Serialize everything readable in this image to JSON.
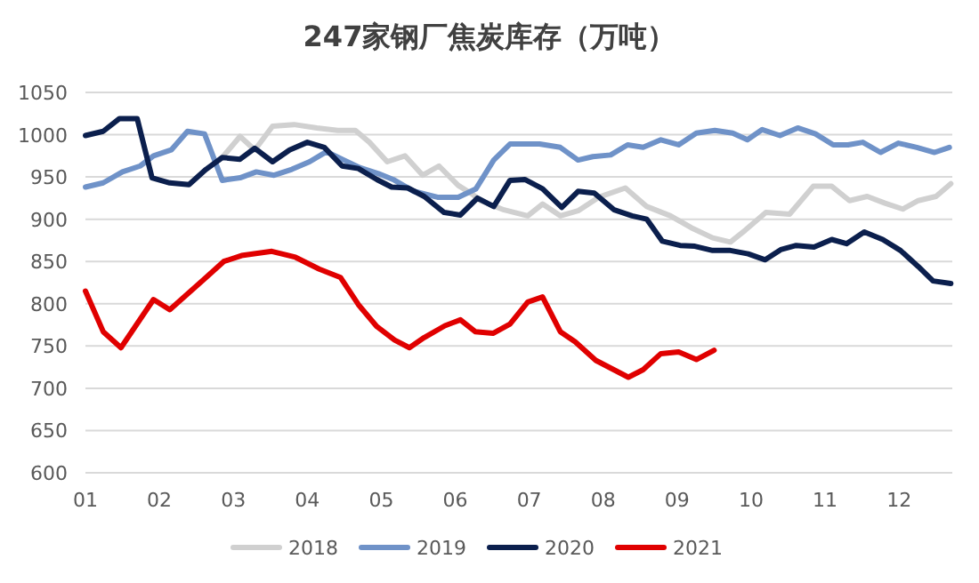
{
  "chart_data": {
    "type": "line",
    "title": "247家钢厂焦炭库存（万吨）",
    "xlim": [
      1,
      12.72
    ],
    "ylim": [
      600,
      1050
    ],
    "xticks": [
      {
        "value": 1,
        "label": "01"
      },
      {
        "value": 2,
        "label": "02"
      },
      {
        "value": 3,
        "label": "03"
      },
      {
        "value": 4,
        "label": "04"
      },
      {
        "value": 5,
        "label": "05"
      },
      {
        "value": 6,
        "label": "06"
      },
      {
        "value": 7,
        "label": "07"
      },
      {
        "value": 8,
        "label": "08"
      },
      {
        "value": 9,
        "label": "09"
      },
      {
        "value": 10,
        "label": "10"
      },
      {
        "value": 11,
        "label": "11"
      },
      {
        "value": 12,
        "label": "12"
      }
    ],
    "yticks": [
      600,
      650,
      700,
      750,
      800,
      850,
      900,
      950,
      1000,
      1050
    ],
    "grid": "y",
    "legend": "bottom",
    "marker": "none",
    "line_style": "solid",
    "series": [
      {
        "name": "2018",
        "color": "#d0d0d0",
        "x": [
          2.85,
          3.09,
          3.29,
          3.53,
          3.82,
          4.13,
          4.41,
          4.65,
          4.84,
          5.08,
          5.32,
          5.56,
          5.78,
          6.04,
          6.24,
          6.34,
          6.66,
          6.98,
          7.18,
          7.42,
          7.66,
          7.94,
          8.3,
          8.59,
          8.91,
          9.19,
          9.48,
          9.72,
          9.92,
          10.2,
          10.52,
          10.84,
          11.09,
          11.33,
          11.57,
          11.81,
          12.05,
          12.26,
          12.5,
          12.7
        ],
        "values": [
          973,
          998,
          982,
          1010,
          1012,
          1008,
          1005,
          1005,
          991,
          968,
          975,
          952,
          963,
          940,
          929,
          922,
          911,
          904,
          918,
          904,
          910,
          926,
          937,
          915,
          904,
          890,
          878,
          873,
          887,
          908,
          906,
          939,
          939,
          922,
          927,
          919,
          912,
          922,
          927,
          942
        ]
      },
      {
        "name": "2019",
        "color": "#6f92c8",
        "x": [
          1.0,
          1.24,
          1.5,
          1.74,
          1.92,
          2.16,
          2.38,
          2.61,
          2.85,
          3.09,
          3.31,
          3.55,
          3.79,
          4.03,
          4.26,
          4.47,
          4.71,
          4.96,
          5.16,
          5.44,
          5.76,
          6.04,
          6.28,
          6.52,
          6.74,
          7.14,
          7.42,
          7.66,
          7.86,
          8.1,
          8.33,
          8.54,
          8.78,
          9.02,
          9.26,
          9.51,
          9.75,
          9.95,
          10.15,
          10.39,
          10.63,
          10.87,
          11.11,
          11.31,
          11.51,
          11.75,
          11.99,
          12.24,
          12.48,
          12.68
        ],
        "values": [
          938,
          943,
          956,
          963,
          975,
          982,
          1004,
          1001,
          946,
          949,
          956,
          952,
          959,
          968,
          980,
          971,
          961,
          954,
          947,
          933,
          926,
          926,
          936,
          970,
          989,
          989,
          985,
          970,
          974,
          976,
          988,
          985,
          994,
          988,
          1002,
          1005,
          1002,
          994,
          1006,
          999,
          1008,
          1001,
          988,
          988,
          991,
          979,
          990,
          985,
          979,
          985
        ]
      },
      {
        "name": "2020",
        "color": "#0b1f4d",
        "x": [
          1.0,
          1.24,
          1.46,
          1.7,
          1.9,
          2.14,
          2.4,
          2.63,
          2.85,
          3.09,
          3.29,
          3.53,
          3.76,
          4.0,
          4.23,
          4.47,
          4.69,
          4.94,
          5.14,
          5.36,
          5.58,
          5.85,
          6.07,
          6.3,
          6.52,
          6.74,
          6.94,
          7.18,
          7.44,
          7.66,
          7.88,
          8.15,
          8.39,
          8.59,
          8.8,
          9.04,
          9.24,
          9.48,
          9.72,
          9.96,
          10.19,
          10.4,
          10.61,
          10.85,
          11.09,
          11.29,
          11.53,
          11.78,
          12.02,
          12.26,
          12.46,
          12.7
        ],
        "values": [
          999,
          1004,
          1019,
          1019,
          949,
          943,
          941,
          959,
          973,
          971,
          984,
          968,
          982,
          991,
          985,
          963,
          960,
          947,
          938,
          937,
          927,
          908,
          905,
          925,
          915,
          946,
          947,
          936,
          914,
          933,
          931,
          911,
          904,
          900,
          874,
          869,
          868,
          863,
          863,
          859,
          852,
          864,
          869,
          867,
          876,
          871,
          885,
          876,
          863,
          844,
          827,
          824
        ]
      },
      {
        "name": "2021",
        "color": "#e00000",
        "x": [
          1.0,
          1.24,
          1.48,
          1.92,
          2.14,
          2.63,
          2.87,
          3.11,
          3.52,
          3.84,
          4.16,
          4.45,
          4.69,
          4.94,
          5.18,
          5.38,
          5.58,
          5.86,
          6.07,
          6.27,
          6.51,
          6.74,
          6.98,
          7.18,
          7.42,
          7.62,
          7.9,
          8.34,
          8.54,
          8.78,
          9.02,
          9.26,
          9.5
        ],
        "values": [
          815,
          767,
          748,
          805,
          793,
          831,
          850,
          857,
          862,
          855,
          841,
          831,
          799,
          773,
          757,
          748,
          760,
          774,
          781,
          767,
          765,
          776,
          802,
          808,
          767,
          755,
          733,
          713,
          722,
          741,
          743,
          734,
          745
        ]
      }
    ]
  }
}
